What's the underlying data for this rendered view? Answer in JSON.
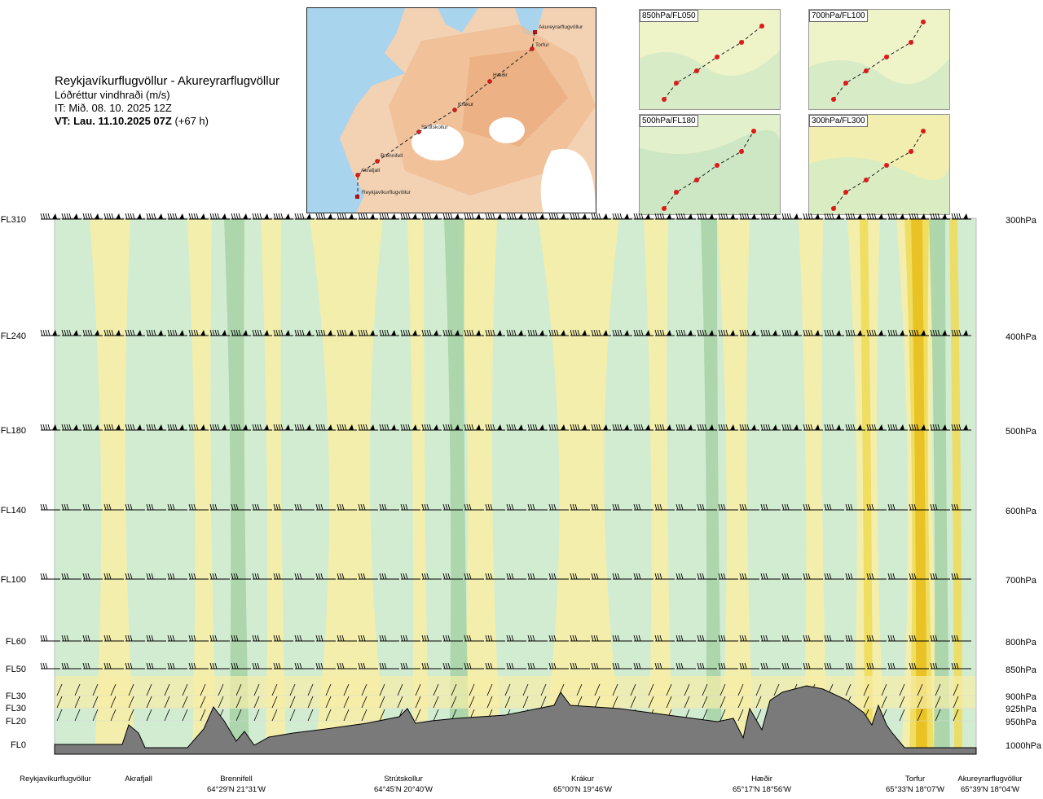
{
  "header": {
    "route": "Reykjavíkurflugvöllur - Akureyrarflugvöllur",
    "variable": "Lóðréttur vindhraði (m/s)",
    "init_time": "IT: Mið. 08. 10. 2025 12Z",
    "valid_label": "VT: Lau. 11.10.2025 07Z",
    "valid_offset": "(+67 h)"
  },
  "map": {
    "waypoints": [
      "Akureyrarflugvöllur",
      "Torfur",
      "Hæðir",
      "Krákur",
      "Strútskollur",
      "Brennifell",
      "Akrafjall",
      "Reykjavíkurflugvöllur"
    ]
  },
  "mini_maps": [
    {
      "label": "850hPa/FL050"
    },
    {
      "label": "700hPa/FL100"
    },
    {
      "label": "500hPa/FL180"
    },
    {
      "label": "300hPa/FL300"
    }
  ],
  "chart_data": {
    "type": "heatmap",
    "title": "Reykjavíkurflugvöllur - Akureyrarflugvöllur",
    "subtitle": "Lóðréttur vindhraði (m/s)",
    "flight_levels": [
      "FL310",
      "FL240",
      "FL180",
      "FL140",
      "FL100",
      "FL60",
      "FL50",
      "FL30",
      "FL30",
      "FL20",
      "FL0"
    ],
    "pressure_levels": [
      "300hPa",
      "400hPa",
      "500hPa",
      "600hPa",
      "700hPa",
      "800hPa",
      "850hPa",
      "900hPa",
      "925hPa",
      "950hPa",
      "1000hPa"
    ],
    "stations": [
      {
        "name": "Reykjavíkurflugvöllur",
        "coord": ""
      },
      {
        "name": "Akrafjall",
        "coord": ""
      },
      {
        "name": "Brennifell",
        "coord": "64°29'N 21°31'W"
      },
      {
        "name": "Strútskollur",
        "coord": "64°45'N 20°40'W"
      },
      {
        "name": "Krákur",
        "coord": "65°00'N 19°46'W"
      },
      {
        "name": "Hæðir",
        "coord": "65°17'N 18°56'W"
      },
      {
        "name": "Torfur",
        "coord": "65°33'N 18°07'W"
      },
      {
        "name": "Akureyrarflugvöllur",
        "coord": "65°39'N 18°04'W"
      }
    ],
    "colors": {
      "up_light": "#f6eea6",
      "up_mid": "#eedc5a",
      "up_strong": "#e8c020",
      "down_light": "#d2ecd2",
      "down_mid": "#a8d4a8",
      "down_strong": "#7fb88a",
      "terrain": "#7a7a7a"
    }
  }
}
